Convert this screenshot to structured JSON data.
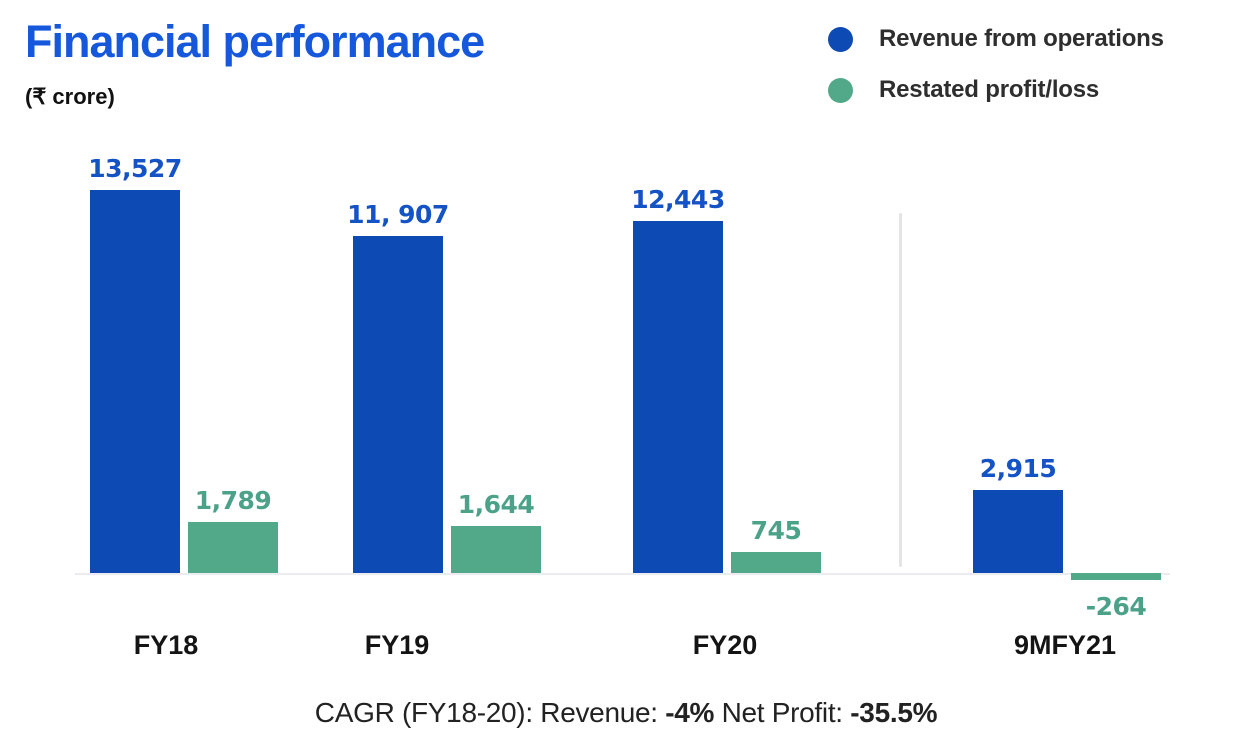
{
  "header": {
    "title": "Financial performance",
    "subtitle": "(₹ crore)"
  },
  "legend": {
    "items": [
      {
        "label": "Revenue from operations",
        "color": "#0d4ab3"
      },
      {
        "label": "Restated profit/loss",
        "color": "#52a98a"
      }
    ]
  },
  "chart_data": {
    "type": "bar",
    "title": "Financial performance",
    "unit_label": "(₹ crore)",
    "categories": [
      "FY18",
      "FY19",
      "FY20",
      "9MFY21"
    ],
    "series": [
      {
        "name": "Revenue from operations",
        "values": [
          13527,
          11907,
          12443,
          2915
        ],
        "value_labels": [
          "13,527",
          "11, 907",
          "12,443",
          "2,915"
        ],
        "color": "#0d4ab3",
        "label_color": "#1453c5"
      },
      {
        "name": "Restated profit/loss",
        "values": [
          1789,
          1644,
          745,
          -264
        ],
        "value_labels": [
          "1,789",
          "1,644",
          "745",
          "-264"
        ],
        "color": "#52a98a",
        "label_color": "#4ba288"
      }
    ],
    "ylim": [
      -500,
      14000
    ],
    "grid": false,
    "legend_position": "top-right",
    "separator_before_category": "9MFY21",
    "annotation": {
      "prefix": "CAGR (FY18-20): Revenue: ",
      "revenue_cagr": "-4%",
      "middle": " Net Profit: ",
      "profit_cagr": "-35.5%"
    }
  }
}
